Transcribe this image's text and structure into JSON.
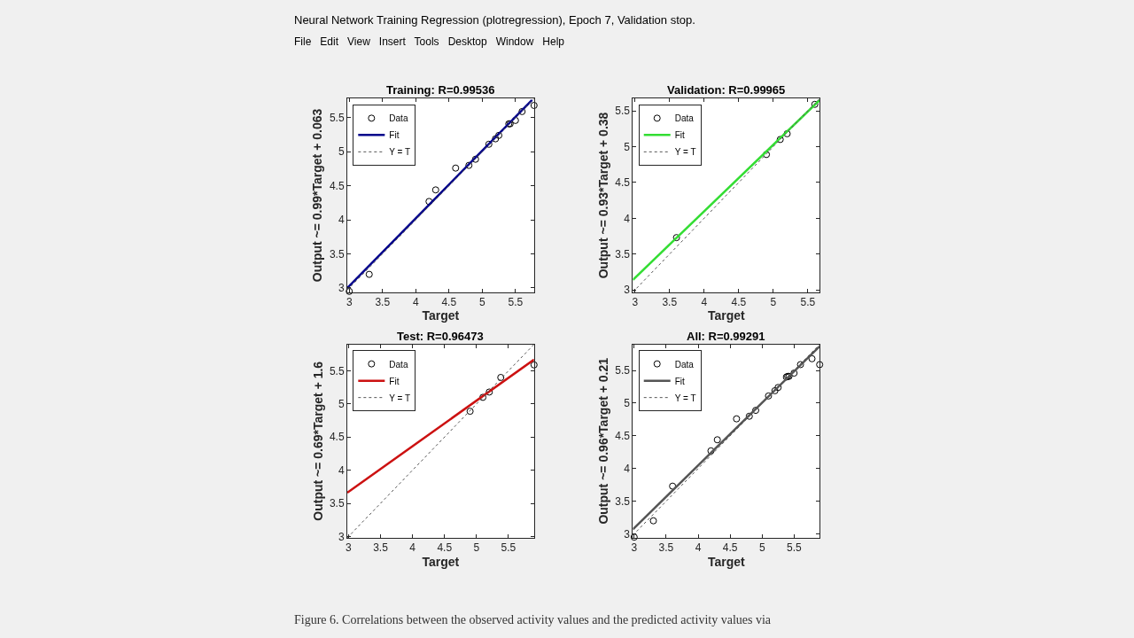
{
  "chart_data": [
    {
      "type": "other",
      "title": "Neural Network Training Regression (plotregression), Epoch 7, Validation stop.",
      "annotations": [
        "File   Edit   View   Insert   Tools   Desktop   Window   Help",
        "Figure 6. Correlations between the observed activity values and the predicted activity values via"
      ]
    },
    {
      "type": "scatter",
      "title": "Training: R=0.99536",
      "xlabel": "Target",
      "ylabel": "Output ~= 0.99*Target + 0.063",
      "xlim": [
        2.97,
        5.78
      ],
      "ylim": [
        2.94,
        5.78
      ],
      "xticks": [
        3,
        3.5,
        4,
        4.5,
        5,
        5.5
      ],
      "yticks": [
        3,
        3.5,
        4,
        4.5,
        5,
        5.5
      ],
      "legend": "top left",
      "series": [
        {
          "name": "Data",
          "type": "scatter",
          "marker": "circle",
          "color": "#000000",
          "x": [
            3.0,
            3.3,
            4.2,
            4.3,
            4.6,
            4.8,
            4.9,
            5.1,
            5.2,
            5.25,
            5.4,
            5.42,
            5.5,
            5.6,
            5.78
          ],
          "values": [
            2.95,
            3.2,
            4.27,
            4.44,
            4.76,
            4.8,
            4.89,
            5.11,
            5.19,
            5.24,
            5.41,
            5.41,
            5.46,
            5.59,
            5.68
          ]
        },
        {
          "name": "Fit",
          "type": "line",
          "marker": "none",
          "line_style": "solid",
          "color": "#00008b",
          "x": [
            2.97,
            5.75
          ],
          "values": [
            3.0,
            5.76
          ]
        },
        {
          "name": "Y = T",
          "type": "line",
          "marker": "none",
          "line_style": "dotted",
          "color": "#555555",
          "x": [
            2.97,
            5.78
          ],
          "values": [
            2.97,
            5.78
          ]
        }
      ]
    },
    {
      "type": "scatter",
      "title": "Validation: R=0.99965",
      "xlabel": "Target",
      "ylabel": "Output ~= 0.93*Target + 0.38",
      "xlim": [
        2.97,
        5.67
      ],
      "ylim": [
        2.97,
        5.67
      ],
      "xticks": [
        3,
        3.5,
        4,
        4.5,
        5,
        5.5
      ],
      "yticks": [
        3,
        3.5,
        4,
        4.5,
        5,
        5.5
      ],
      "legend": "top left",
      "series": [
        {
          "name": "Data",
          "type": "scatter",
          "marker": "circle",
          "color": "#000000",
          "x": [
            3.6,
            4.9,
            5.1,
            5.2,
            5.6
          ],
          "values": [
            3.73,
            4.89,
            5.1,
            5.18,
            5.59
          ]
        },
        {
          "name": "Fit",
          "type": "line",
          "marker": "none",
          "line_style": "solid",
          "color": "#33dd33",
          "x": [
            2.97,
            5.67
          ],
          "values": [
            3.14,
            5.65
          ]
        },
        {
          "name": "Y = T",
          "type": "line",
          "marker": "none",
          "line_style": "dotted",
          "color": "#555555",
          "x": [
            2.97,
            5.67
          ],
          "values": [
            2.97,
            5.67
          ]
        }
      ]
    },
    {
      "type": "scatter",
      "title": "Test: R=0.96473",
      "xlabel": "Target",
      "ylabel": "Output ~= 0.69*Target + 1.6",
      "xlim": [
        2.98,
        5.9
      ],
      "ylim": [
        2.98,
        5.9
      ],
      "xticks": [
        3,
        3.5,
        4,
        4.5,
        5,
        5.5
      ],
      "yticks": [
        3,
        3.5,
        4,
        4.5,
        5,
        5.5
      ],
      "legend": "top left",
      "series": [
        {
          "name": "Data",
          "type": "scatter",
          "marker": "circle",
          "color": "#000000",
          "x": [
            4.9,
            5.1,
            5.2,
            5.38,
            5.9
          ],
          "values": [
            4.89,
            5.1,
            5.18,
            5.4,
            5.59
          ]
        },
        {
          "name": "Fit",
          "type": "line",
          "marker": "none",
          "line_style": "solid",
          "color": "#cc1111",
          "x": [
            2.98,
            5.9
          ],
          "values": [
            3.66,
            5.67
          ]
        },
        {
          "name": "Y = T",
          "type": "line",
          "marker": "none",
          "line_style": "dotted",
          "color": "#555555",
          "x": [
            2.98,
            5.9
          ],
          "values": [
            2.98,
            5.9
          ]
        }
      ]
    },
    {
      "type": "scatter",
      "title": "All: R=0.99291",
      "xlabel": "Target",
      "ylabel": "Output ~= 0.96*Target + 0.21",
      "xlim": [
        2.98,
        5.9
      ],
      "ylim": [
        2.94,
        5.9
      ],
      "xticks": [
        3,
        3.5,
        4,
        4.5,
        5,
        5.5
      ],
      "yticks": [
        3,
        3.5,
        4,
        4.5,
        5,
        5.5
      ],
      "legend": "top left",
      "series": [
        {
          "name": "Data",
          "type": "scatter",
          "marker": "circle",
          "color": "#000000",
          "x": [
            3.0,
            3.3,
            3.6,
            4.2,
            4.3,
            4.6,
            4.8,
            4.9,
            5.1,
            5.2,
            5.25,
            5.38,
            5.4,
            5.42,
            5.5,
            5.6,
            5.78,
            5.9
          ],
          "values": [
            2.95,
            3.2,
            3.73,
            4.27,
            4.44,
            4.76,
            4.8,
            4.89,
            5.11,
            5.19,
            5.24,
            5.4,
            5.41,
            5.41,
            5.46,
            5.59,
            5.68,
            5.59
          ]
        },
        {
          "name": "Fit",
          "type": "line",
          "marker": "none",
          "line_style": "solid",
          "color": "#555555",
          "x": [
            2.98,
            5.9
          ],
          "values": [
            3.07,
            5.87
          ]
        },
        {
          "name": "Y = T",
          "type": "line",
          "marker": "none",
          "line_style": "dotted",
          "color": "#555555",
          "x": [
            2.98,
            5.9
          ],
          "values": [
            2.98,
            5.9
          ]
        }
      ]
    }
  ]
}
